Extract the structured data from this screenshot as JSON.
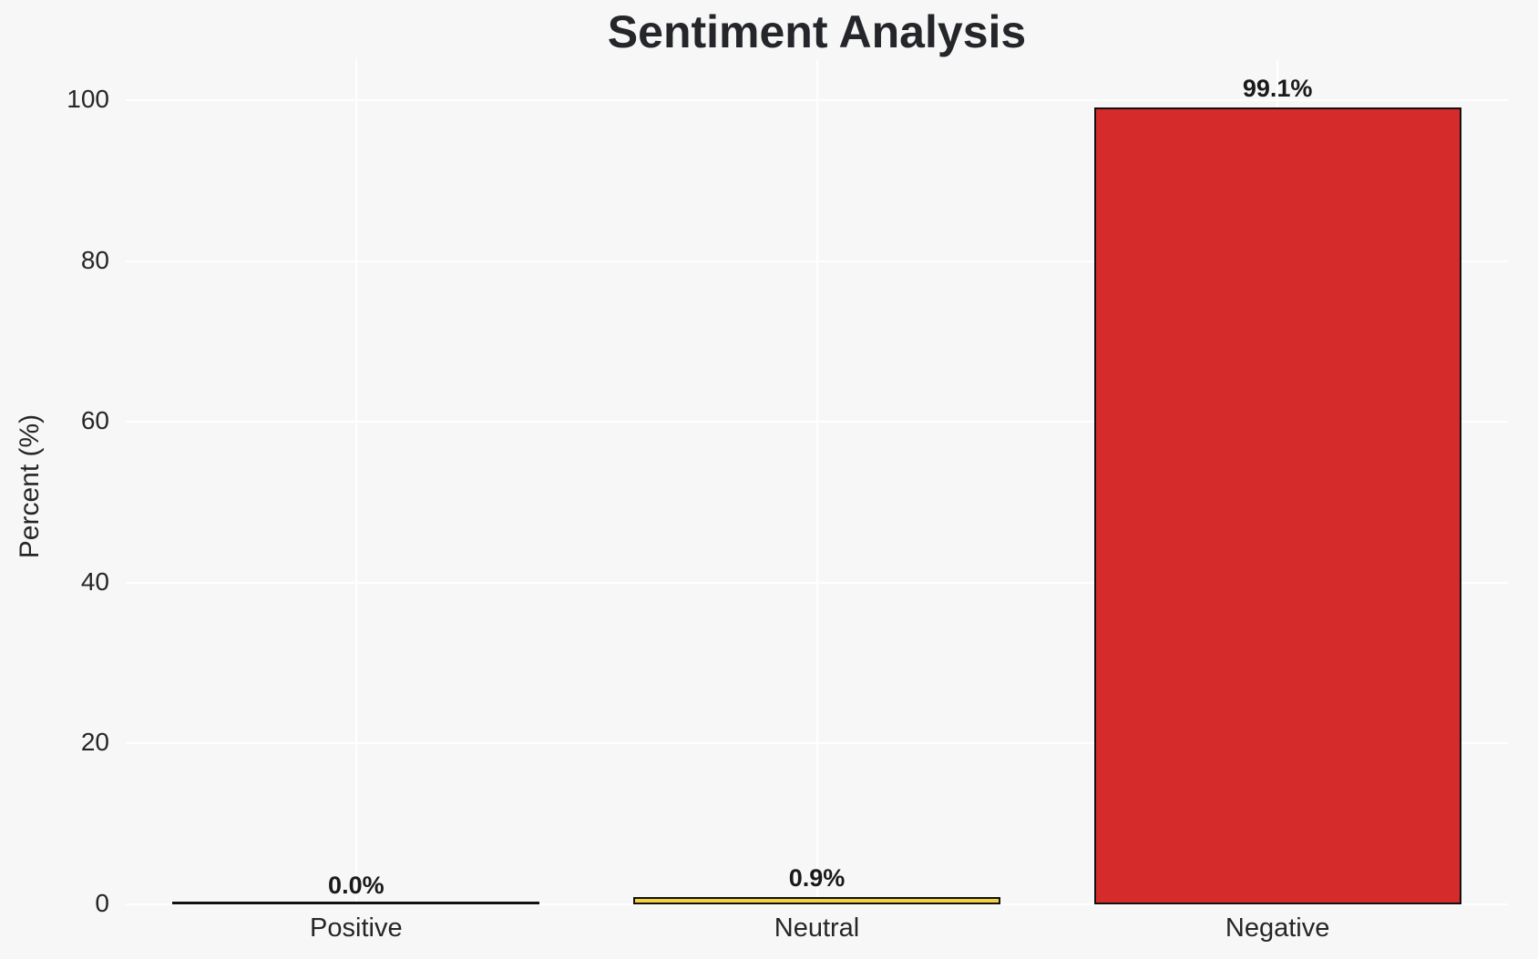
{
  "chart_data": {
    "type": "bar",
    "title": "Sentiment Analysis",
    "xlabel": "",
    "ylabel": "Percent (%)",
    "categories": [
      "Positive",
      "Neutral",
      "Negative"
    ],
    "values": [
      0.0,
      0.9,
      99.1
    ],
    "value_labels": [
      "0.0%",
      "0.9%",
      "99.1%"
    ],
    "yticks": [
      0,
      20,
      40,
      60,
      80,
      100
    ],
    "ylim": [
      0,
      105
    ],
    "grid": true,
    "legend": false,
    "background_color": "#f7f7f7",
    "grid_color": "#ffffff",
    "bar_colors": [
      "#f7f7f7",
      "#f2d33f",
      "#d62b2b"
    ],
    "bar_edge_color": "#111111",
    "title_color": "#24262a",
    "tick_color": "#262626"
  }
}
